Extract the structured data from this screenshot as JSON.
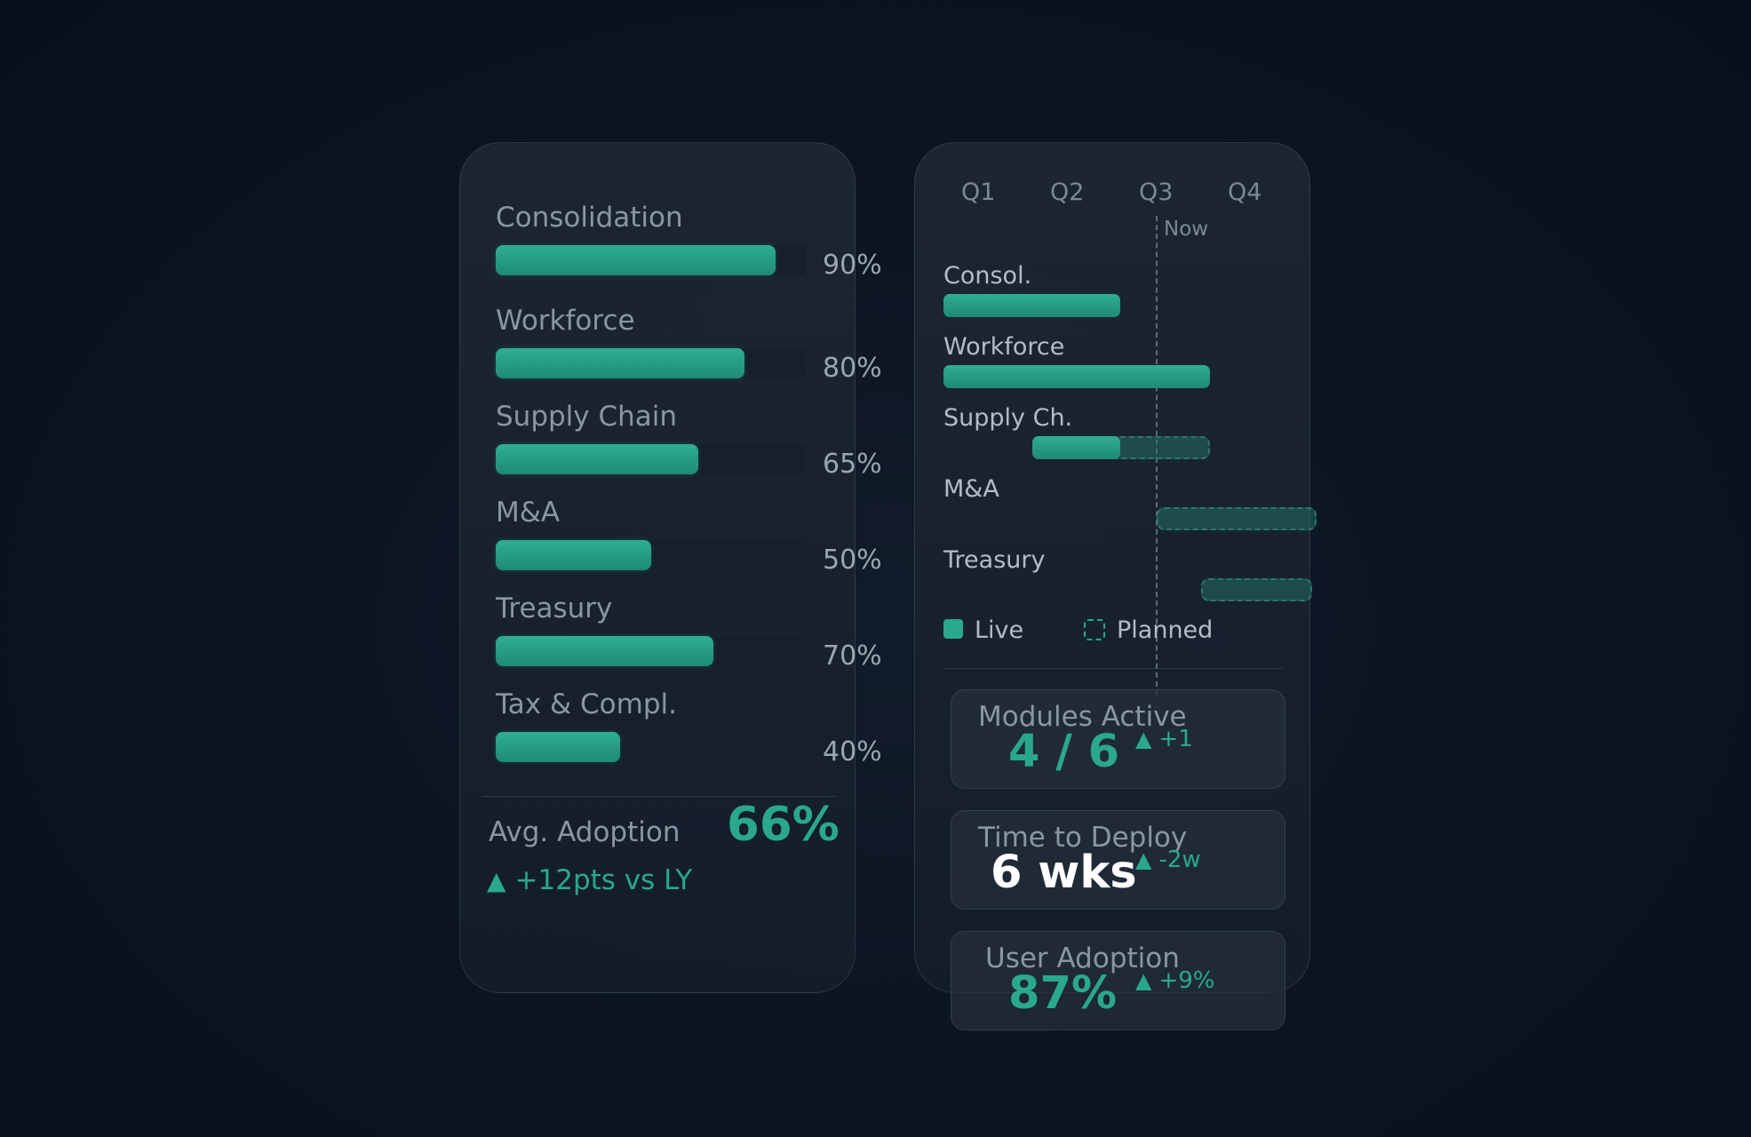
{
  "colors": {
    "accent": "#2aa88c",
    "background": "#0b1320",
    "panel": "#1b2533",
    "muted_text": "#8a96a3"
  },
  "adoption": {
    "modules": [
      {
        "label": "Consolidation",
        "value": 90,
        "value_text": "90%"
      },
      {
        "label": "Workforce",
        "value": 80,
        "value_text": "80%"
      },
      {
        "label": "Supply Chain",
        "value": 65,
        "value_text": "65%"
      },
      {
        "label": "M&A",
        "value": 50,
        "value_text": "50%"
      },
      {
        "label": "Treasury",
        "value": 70,
        "value_text": "70%"
      },
      {
        "label": "Tax & Compl.",
        "value": 40,
        "value_text": "40%"
      }
    ],
    "avg_label": "Avg. Adoption",
    "avg_value": "66%",
    "trend_icon": "up-triangle-icon",
    "trend_text": "+12pts vs LY"
  },
  "roadmap": {
    "quarters": [
      "Q1",
      "Q2",
      "Q3",
      "Q4"
    ],
    "now_label": "Now",
    "rows": [
      {
        "label": "Consol.",
        "live": [
          1.0,
          2.99
        ],
        "planned": null
      },
      {
        "label": "Workforce",
        "live": [
          1.0,
          4.0
        ],
        "planned": null
      },
      {
        "label": "Supply Ch.",
        "live": [
          2.0,
          2.99
        ],
        "planned": [
          2.0,
          4.0
        ]
      },
      {
        "label": "M&A",
        "live": null,
        "planned": [
          3.4,
          5.2
        ]
      },
      {
        "label": "Treasury",
        "live": null,
        "planned": [
          3.9,
          5.15
        ]
      }
    ],
    "legend": {
      "live": "Live",
      "planned": "Planned"
    }
  },
  "kpis": [
    {
      "title": "Modules Active",
      "value": "4 / 6",
      "delta": "+1",
      "value_color": "#2aa88c"
    },
    {
      "title": "Time to Deploy",
      "value": "6 wks",
      "delta": "-2w",
      "value_color": "#ffffff"
    },
    {
      "title": "User Adoption",
      "value": "87%",
      "delta": "+9%",
      "value_color": "#2aa88c"
    }
  ]
}
